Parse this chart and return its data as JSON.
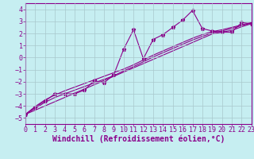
{
  "title": "",
  "xlabel": "Windchill (Refroidissement éolien,°C)",
  "ylabel": "",
  "background_color": "#c6eef1",
  "line_color": "#8b008b",
  "grid_color": "#a8c8cc",
  "x_data": [
    0,
    1,
    2,
    3,
    4,
    5,
    6,
    7,
    8,
    9,
    10,
    11,
    12,
    13,
    14,
    15,
    16,
    17,
    18,
    19,
    20,
    21,
    22,
    23
  ],
  "y_scatter": [
    -4.7,
    -4.1,
    -3.6,
    -3.0,
    -3.0,
    -3.0,
    -2.7,
    -1.9,
    -2.1,
    -1.4,
    0.7,
    2.3,
    -0.1,
    1.5,
    1.9,
    2.5,
    3.1,
    3.9,
    2.4,
    2.2,
    2.1,
    2.1,
    2.9,
    2.8
  ],
  "y_line1": [
    -4.7,
    -4.35,
    -4.0,
    -3.65,
    -3.3,
    -2.95,
    -2.6,
    -2.25,
    -1.9,
    -1.55,
    -1.2,
    -0.85,
    -0.5,
    -0.15,
    0.2,
    0.55,
    0.9,
    1.25,
    1.6,
    1.95,
    2.1,
    2.25,
    2.55,
    2.8
  ],
  "y_line2": [
    -4.7,
    -4.2,
    -3.7,
    -3.3,
    -3.0,
    -2.7,
    -2.4,
    -2.1,
    -1.8,
    -1.5,
    -1.1,
    -0.75,
    -0.35,
    0.05,
    0.4,
    0.75,
    1.1,
    1.45,
    1.75,
    2.05,
    2.2,
    2.4,
    2.65,
    2.85
  ],
  "y_line3": [
    -4.7,
    -4.05,
    -3.5,
    -3.1,
    -2.75,
    -2.45,
    -2.15,
    -1.85,
    -1.55,
    -1.25,
    -0.95,
    -0.6,
    -0.2,
    0.2,
    0.55,
    0.9,
    1.25,
    1.6,
    1.9,
    2.15,
    2.3,
    2.5,
    2.7,
    2.9
  ],
  "xlim": [
    0,
    23
  ],
  "ylim": [
    -5.5,
    4.5
  ],
  "yticks": [
    -5,
    -4,
    -3,
    -2,
    -1,
    0,
    1,
    2,
    3,
    4
  ],
  "xticks": [
    0,
    1,
    2,
    3,
    4,
    5,
    6,
    7,
    8,
    9,
    10,
    11,
    12,
    13,
    14,
    15,
    16,
    17,
    18,
    19,
    20,
    21,
    22,
    23
  ],
  "marker": "*",
  "marker_size": 3.5,
  "linewidth": 0.8,
  "xlabel_fontsize": 7,
  "tick_fontsize": 6
}
